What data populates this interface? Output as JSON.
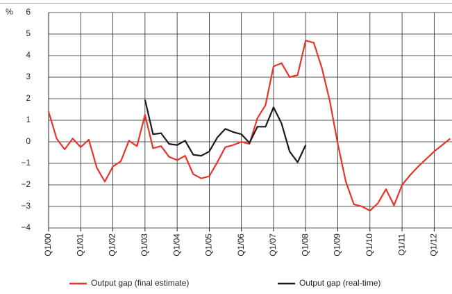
{
  "chart_data": {
    "type": "line",
    "y_unit_label": "%",
    "categories": [
      "Q1/00",
      null,
      null,
      null,
      "Q1/01",
      null,
      null,
      null,
      "Q1/02",
      null,
      null,
      null,
      "Q1/03",
      null,
      null,
      null,
      "Q1/04",
      null,
      null,
      null,
      "Q1/05",
      null,
      null,
      null,
      "Q1/06",
      null,
      null,
      null,
      "Q1/07",
      null,
      null,
      null,
      "Q1/08",
      null,
      null,
      null,
      "Q1/09",
      null,
      null,
      null,
      "Q1/10",
      null,
      null,
      null,
      "Q1/11",
      null,
      null,
      null,
      "Q1/12",
      null,
      null
    ],
    "series": [
      {
        "name": "Output gap (final estimate)",
        "color": "#e8332a",
        "values": [
          1.4,
          0.15,
          -0.35,
          0.15,
          -0.25,
          0.1,
          -1.2,
          -1.85,
          -1.15,
          -0.9,
          0.05,
          -0.2,
          1.25,
          -0.3,
          -0.2,
          -0.7,
          -0.85,
          -0.65,
          -1.5,
          -1.7,
          -1.6,
          -0.95,
          -0.25,
          -0.15,
          0.0,
          -0.1,
          1.1,
          1.7,
          3.5,
          3.65,
          3.0,
          3.1,
          4.7,
          4.6,
          3.45,
          1.9,
          -0.1,
          -1.85,
          -2.9,
          -3.0,
          -3.2,
          -2.85,
          -2.2,
          -2.95,
          -2.0,
          -1.55,
          -1.15,
          -0.8,
          -0.45,
          -0.15,
          0.15
        ]
      },
      {
        "name": "Output gap (real-time)",
        "color": "#1a1a1a",
        "values": [
          null,
          null,
          null,
          null,
          null,
          null,
          null,
          null,
          null,
          null,
          null,
          null,
          1.95,
          0.35,
          0.4,
          -0.1,
          -0.15,
          0.05,
          -0.6,
          -0.65,
          -0.45,
          0.2,
          0.6,
          0.45,
          0.35,
          -0.05,
          0.7,
          0.7,
          1.6,
          0.85,
          -0.45,
          -0.95,
          -0.15,
          null,
          null,
          null,
          null,
          null,
          null,
          null,
          null,
          null,
          null,
          null,
          null,
          null,
          null,
          null,
          null,
          null,
          null
        ]
      }
    ],
    "ylim": [
      -4,
      6
    ],
    "yticks": [
      {
        "value": -4,
        "label": "−4"
      },
      {
        "value": -3,
        "label": "−3"
      },
      {
        "value": -2,
        "label": "−2"
      },
      {
        "value": -1,
        "label": "−1"
      },
      0,
      1,
      2,
      3,
      4,
      5,
      6
    ],
    "grid": true,
    "legend": "bottom"
  }
}
